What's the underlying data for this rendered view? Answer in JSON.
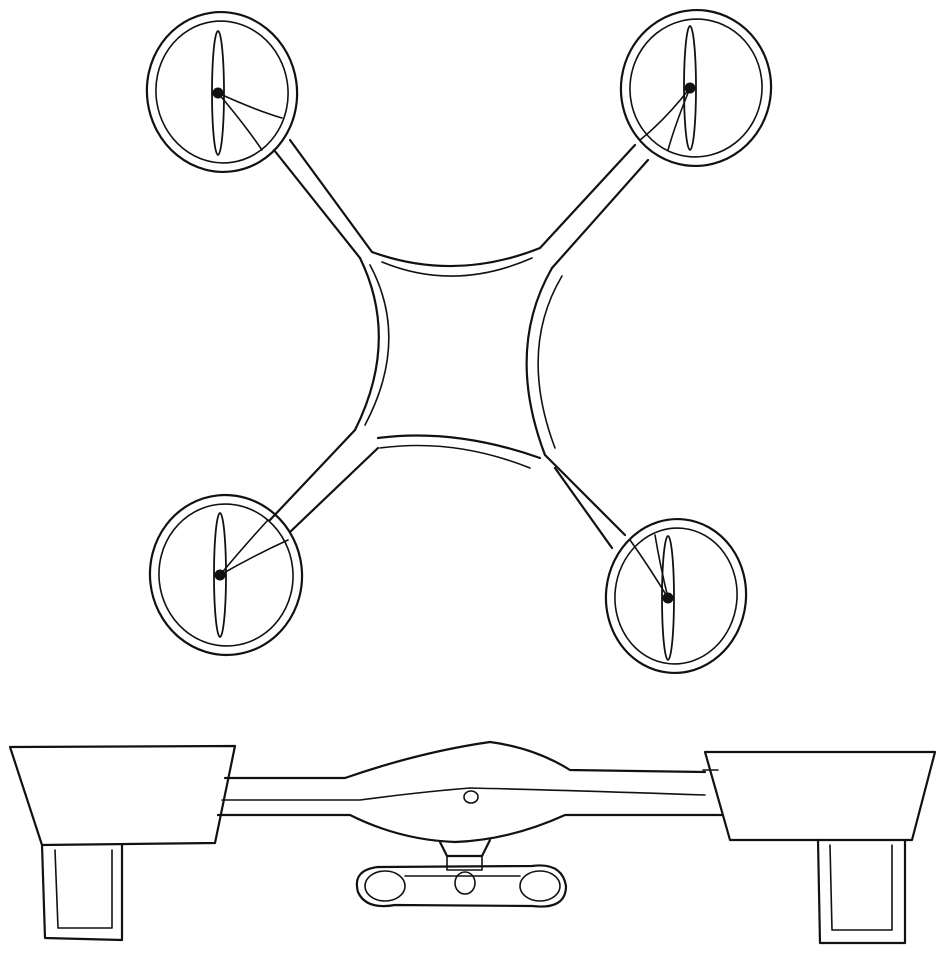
{
  "diagram": {
    "kind": "hand-drawn sketch",
    "views": [
      "top-view",
      "side-view"
    ],
    "stroke_color": "#111111",
    "background_color": "#ffffff"
  }
}
